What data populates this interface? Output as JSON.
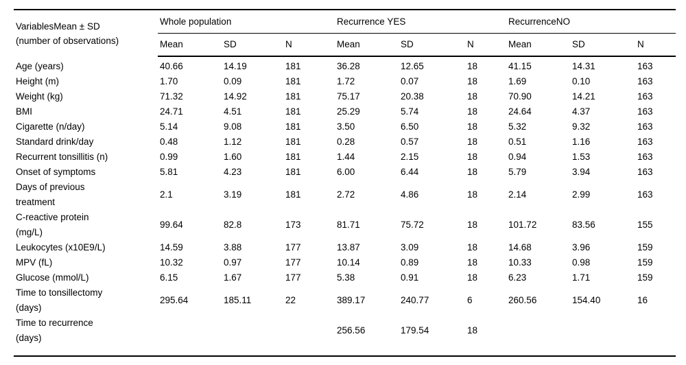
{
  "table": {
    "header": {
      "variables": "VariablesMean ± SD\n(number of observations)",
      "groups": [
        {
          "label": "Whole population"
        },
        {
          "label": "Recurrence YES"
        },
        {
          "label": "RecurrenceNO"
        }
      ],
      "subheaders": [
        "Mean",
        "SD",
        "N"
      ]
    },
    "rows": [
      {
        "label": "Age (years)",
        "cells": [
          "40.66",
          "14.19",
          "181",
          "36.28",
          "12.65",
          "18",
          "41.15",
          "14.31",
          "163"
        ]
      },
      {
        "label": "Height (m)",
        "cells": [
          "1.70",
          "0.09",
          "181",
          "1.72",
          "0.07",
          "18",
          "1.69",
          "0.10",
          "163"
        ]
      },
      {
        "label": "Weight (kg)",
        "cells": [
          "71.32",
          "14.92",
          "181",
          "75.17",
          "20.38",
          "18",
          "70.90",
          "14.21",
          "163"
        ]
      },
      {
        "label": "BMI",
        "cells": [
          "24.71",
          "4.51",
          "181",
          "25.29",
          "5.74",
          "18",
          "24.64",
          "4.37",
          "163"
        ]
      },
      {
        "label": "Cigarette (n/day)",
        "cells": [
          "5.14",
          "9.08",
          "181",
          "3.50",
          "6.50",
          "18",
          "5.32",
          "9.32",
          "163"
        ]
      },
      {
        "label": "Standard drink/day",
        "cells": [
          "0.48",
          "1.12",
          "181",
          "0.28",
          "0.57",
          "18",
          "0.51",
          "1.16",
          "163"
        ]
      },
      {
        "label": "Recurrent tonsillitis (n)",
        "cells": [
          "0.99",
          "1.60",
          "181",
          "1.44",
          "2.15",
          "18",
          "0.94",
          "1.53",
          "163"
        ]
      },
      {
        "label": "Onset of symptoms",
        "cells": [
          "5.81",
          "4.23",
          "181",
          "6.00",
          "6.44",
          "18",
          "5.79",
          "3.94",
          "163"
        ]
      },
      {
        "label": "Days of previous\ntreatment",
        "cells": [
          "2.1",
          "3.19",
          "181",
          "2.72",
          "4.86",
          "18",
          "2.14",
          "2.99",
          "163"
        ]
      },
      {
        "label": "C-reactive protein\n(mg/L)",
        "cells": [
          "99.64",
          "82.8",
          "173",
          "81.71",
          "75.72",
          "18",
          "101.72",
          "83.56",
          "155"
        ]
      },
      {
        "label": "Leukocytes (x10E9/L)",
        "cells": [
          "14.59",
          "3.88",
          "177",
          "13.87",
          "3.09",
          "18",
          "14.68",
          "3.96",
          "159"
        ]
      },
      {
        "label": "MPV (fL)",
        "cells": [
          "10.32",
          "0.97",
          "177",
          "10.14",
          "0.89",
          "18",
          "10.33",
          "0.98",
          "159"
        ]
      },
      {
        "label": "Glucose (mmol/L)",
        "cells": [
          "6.15",
          "1.67",
          "177",
          "5.38",
          "0.91",
          "18",
          "6.23",
          "1.71",
          "159"
        ]
      },
      {
        "label": "Time to tonsillectomy\n(days)",
        "cells": [
          "295.64",
          "185.11",
          "22",
          "389.17",
          "240.77",
          "6",
          "260.56",
          "154.40",
          "16"
        ]
      },
      {
        "label": "Time to recurrence\n(days)",
        "cells": [
          "",
          "",
          "",
          "256.56",
          "179.54",
          "18",
          "",
          "",
          ""
        ]
      }
    ]
  }
}
